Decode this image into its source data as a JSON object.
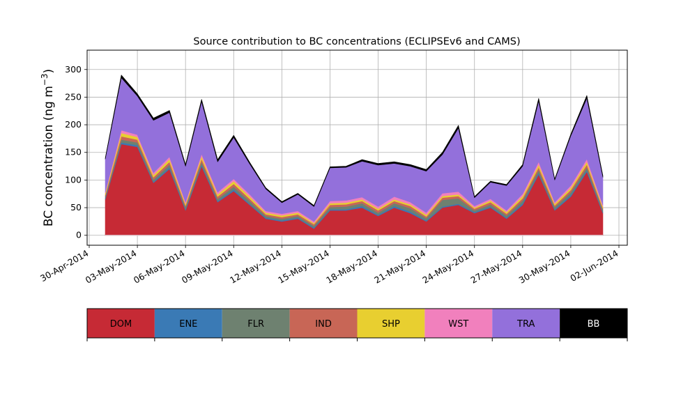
{
  "chart_data": {
    "type": "area",
    "title": "Source contribution to BC concentrations (ECLIPSEv6 and CAMS)",
    "ylabel": "BC concentration (ng m",
    "ylabel_superscript": "−3",
    "ylabel_suffix": ")",
    "ylim": [
      -18,
      335
    ],
    "yticks": [
      0,
      50,
      100,
      150,
      200,
      250,
      300
    ],
    "xlim": [
      "2014-04-30",
      "2014-06-02"
    ],
    "xticks": [
      "30-Apr-2014",
      "03-May-2014",
      "06-May-2014",
      "09-May-2014",
      "12-May-2014",
      "15-May-2014",
      "18-May-2014",
      "21-May-2014",
      "24-May-2014",
      "27-May-2014",
      "30-May-2014",
      "02-Jun-2014"
    ],
    "grid": true,
    "stacked": true,
    "x": [
      "2014-05-01",
      "2014-05-02",
      "2014-05-03",
      "2014-05-04",
      "2014-05-05",
      "2014-05-06",
      "2014-05-07",
      "2014-05-08",
      "2014-05-09",
      "2014-05-10",
      "2014-05-11",
      "2014-05-12",
      "2014-05-13",
      "2014-05-14",
      "2014-05-15",
      "2014-05-16",
      "2014-05-17",
      "2014-05-18",
      "2014-05-19",
      "2014-05-20",
      "2014-05-21",
      "2014-05-22",
      "2014-05-23",
      "2014-05-24",
      "2014-05-25",
      "2014-05-26",
      "2014-05-27",
      "2014-05-28",
      "2014-05-29",
      "2014-05-30",
      "2014-05-31",
      "2014-06-01"
    ],
    "series": [
      {
        "name": "DOM",
        "color": "#c62a35",
        "values": [
          65,
          165,
          160,
          95,
          120,
          45,
          125,
          60,
          80,
          55,
          30,
          25,
          30,
          12,
          45,
          45,
          50,
          35,
          50,
          40,
          25,
          50,
          55,
          40,
          50,
          30,
          55,
          110,
          45,
          70,
          115,
          40
        ]
      },
      {
        "name": "ENE",
        "color": "#3a7ab5",
        "values": [
          2,
          3,
          3,
          2,
          3,
          2,
          3,
          2,
          3,
          2,
          2,
          2,
          2,
          2,
          2,
          2,
          3,
          2,
          3,
          3,
          2,
          2,
          2,
          2,
          2,
          2,
          3,
          3,
          2,
          3,
          3,
          2
        ]
      },
      {
        "name": "FLR",
        "color": "#6e8170",
        "values": [
          3,
          5,
          5,
          4,
          5,
          4,
          5,
          4,
          5,
          5,
          3,
          3,
          3,
          3,
          4,
          5,
          5,
          4,
          5,
          6,
          4,
          12,
          10,
          3,
          4,
          4,
          5,
          5,
          4,
          5,
          5,
          4
        ]
      },
      {
        "name": "IND",
        "color": "#c86656",
        "values": [
          3,
          6,
          5,
          4,
          5,
          3,
          5,
          4,
          5,
          4,
          3,
          3,
          3,
          3,
          4,
          4,
          4,
          4,
          4,
          4,
          3,
          4,
          4,
          3,
          4,
          3,
          4,
          5,
          3,
          4,
          5,
          3
        ]
      },
      {
        "name": "SHP",
        "color": "#e8cf30",
        "values": [
          3,
          6,
          5,
          4,
          5,
          3,
          5,
          4,
          5,
          4,
          3,
          3,
          3,
          2,
          3,
          3,
          3,
          3,
          3,
          3,
          3,
          3,
          3,
          2,
          3,
          3,
          4,
          5,
          3,
          4,
          5,
          3
        ]
      },
      {
        "name": "WST",
        "color": "#f180bd",
        "values": [
          2,
          5,
          4,
          4,
          4,
          3,
          4,
          4,
          4,
          4,
          3,
          3,
          3,
          3,
          4,
          4,
          4,
          4,
          5,
          4,
          4,
          5,
          5,
          3,
          3,
          3,
          4,
          5,
          3,
          4,
          5,
          3
        ]
      },
      {
        "name": "TRA",
        "color": "#9370db",
        "values": [
          60,
          95,
          70,
          95,
          80,
          65,
          95,
          55,
          75,
          55,
          40,
          20,
          30,
          27,
          60,
          60,
          65,
          75,
          60,
          65,
          75,
          70,
          115,
          15,
          30,
          45,
          50,
          110,
          40,
          90,
          110,
          50
        ]
      },
      {
        "name": "BB",
        "color": "#000000",
        "values": [
          2,
          5,
          4,
          4,
          4,
          3,
          4,
          4,
          4,
          3,
          2,
          2,
          2,
          2,
          2,
          2,
          3,
          3,
          3,
          3,
          3,
          4,
          5,
          2,
          2,
          2,
          3,
          5,
          2,
          3,
          5,
          3
        ]
      }
    ]
  }
}
